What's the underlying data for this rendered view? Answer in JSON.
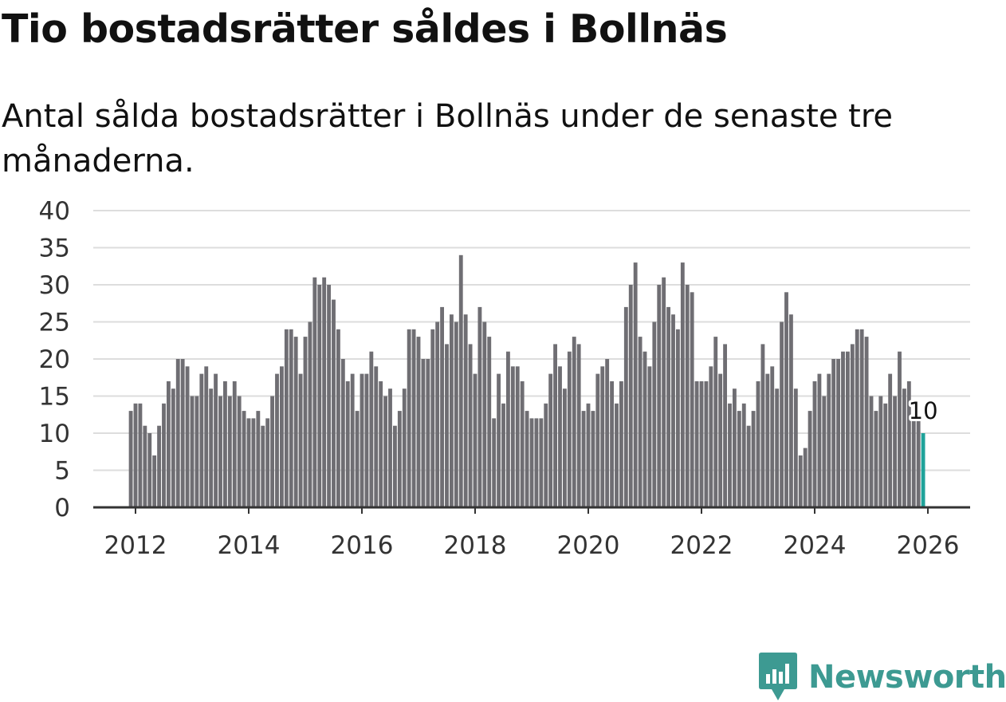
{
  "header": {
    "title": "Tio bostadsrätter såldes i Bollnäs",
    "subtitle": "Antal sålda bostadsrätter i Bollnäs under de senaste tre månaderna."
  },
  "branding": {
    "name": "Newsworthy",
    "icon": "newsworthy-logo-icon",
    "color": "#3d9a92"
  },
  "colors": {
    "bar": "#6f6e73",
    "highlight": "#1fa39a",
    "grid": "#dddddd",
    "axis": "#333333"
  },
  "chart_data": {
    "type": "bar",
    "title": "Tio bostadsrätter såldes i Bollnäs",
    "subtitle": "Antal sålda bostadsrätter i Bollnäs under de senaste tre månaderna.",
    "xlabel": "",
    "ylabel": "",
    "ylim": [
      0,
      40
    ],
    "yticks": [
      0,
      5,
      10,
      15,
      20,
      25,
      30,
      35,
      40
    ],
    "xticks": [
      "2012",
      "2014",
      "2016",
      "2018",
      "2020",
      "2022",
      "2024",
      "2026"
    ],
    "x_start": "2011-12",
    "x_end": "2026-01",
    "grid": true,
    "highlight": {
      "period": "2026-01",
      "value": 10,
      "label": "10"
    },
    "values": [
      13,
      14,
      14,
      11,
      10,
      7,
      11,
      14,
      17,
      16,
      20,
      20,
      19,
      15,
      15,
      18,
      19,
      16,
      18,
      15,
      17,
      15,
      17,
      15,
      13,
      12,
      12,
      13,
      11,
      12,
      15,
      18,
      19,
      24,
      24,
      23,
      18,
      23,
      25,
      31,
      30,
      31,
      30,
      28,
      24,
      20,
      17,
      18,
      13,
      18,
      18,
      21,
      19,
      17,
      15,
      16,
      11,
      13,
      16,
      24,
      24,
      23,
      20,
      20,
      24,
      25,
      27,
      22,
      26,
      25,
      34,
      26,
      22,
      18,
      27,
      25,
      23,
      12,
      18,
      14,
      21,
      19,
      19,
      17,
      13,
      12,
      12,
      12,
      14,
      18,
      22,
      19,
      16,
      21,
      23,
      22,
      13,
      14,
      13,
      18,
      19,
      20,
      17,
      14,
      17,
      27,
      30,
      33,
      23,
      21,
      19,
      25,
      30,
      31,
      27,
      26,
      24,
      33,
      30,
      29,
      17,
      17,
      17,
      19,
      23,
      18,
      22,
      14,
      16,
      13,
      14,
      11,
      13,
      17,
      22,
      18,
      19,
      16,
      25,
      29,
      26,
      16,
      7,
      8,
      13,
      17,
      18,
      15,
      18,
      20,
      20,
      21,
      21,
      22,
      24,
      24,
      23,
      15,
      13,
      15,
      14,
      18,
      15,
      21,
      16,
      17,
      12,
      12,
      10
    ]
  }
}
